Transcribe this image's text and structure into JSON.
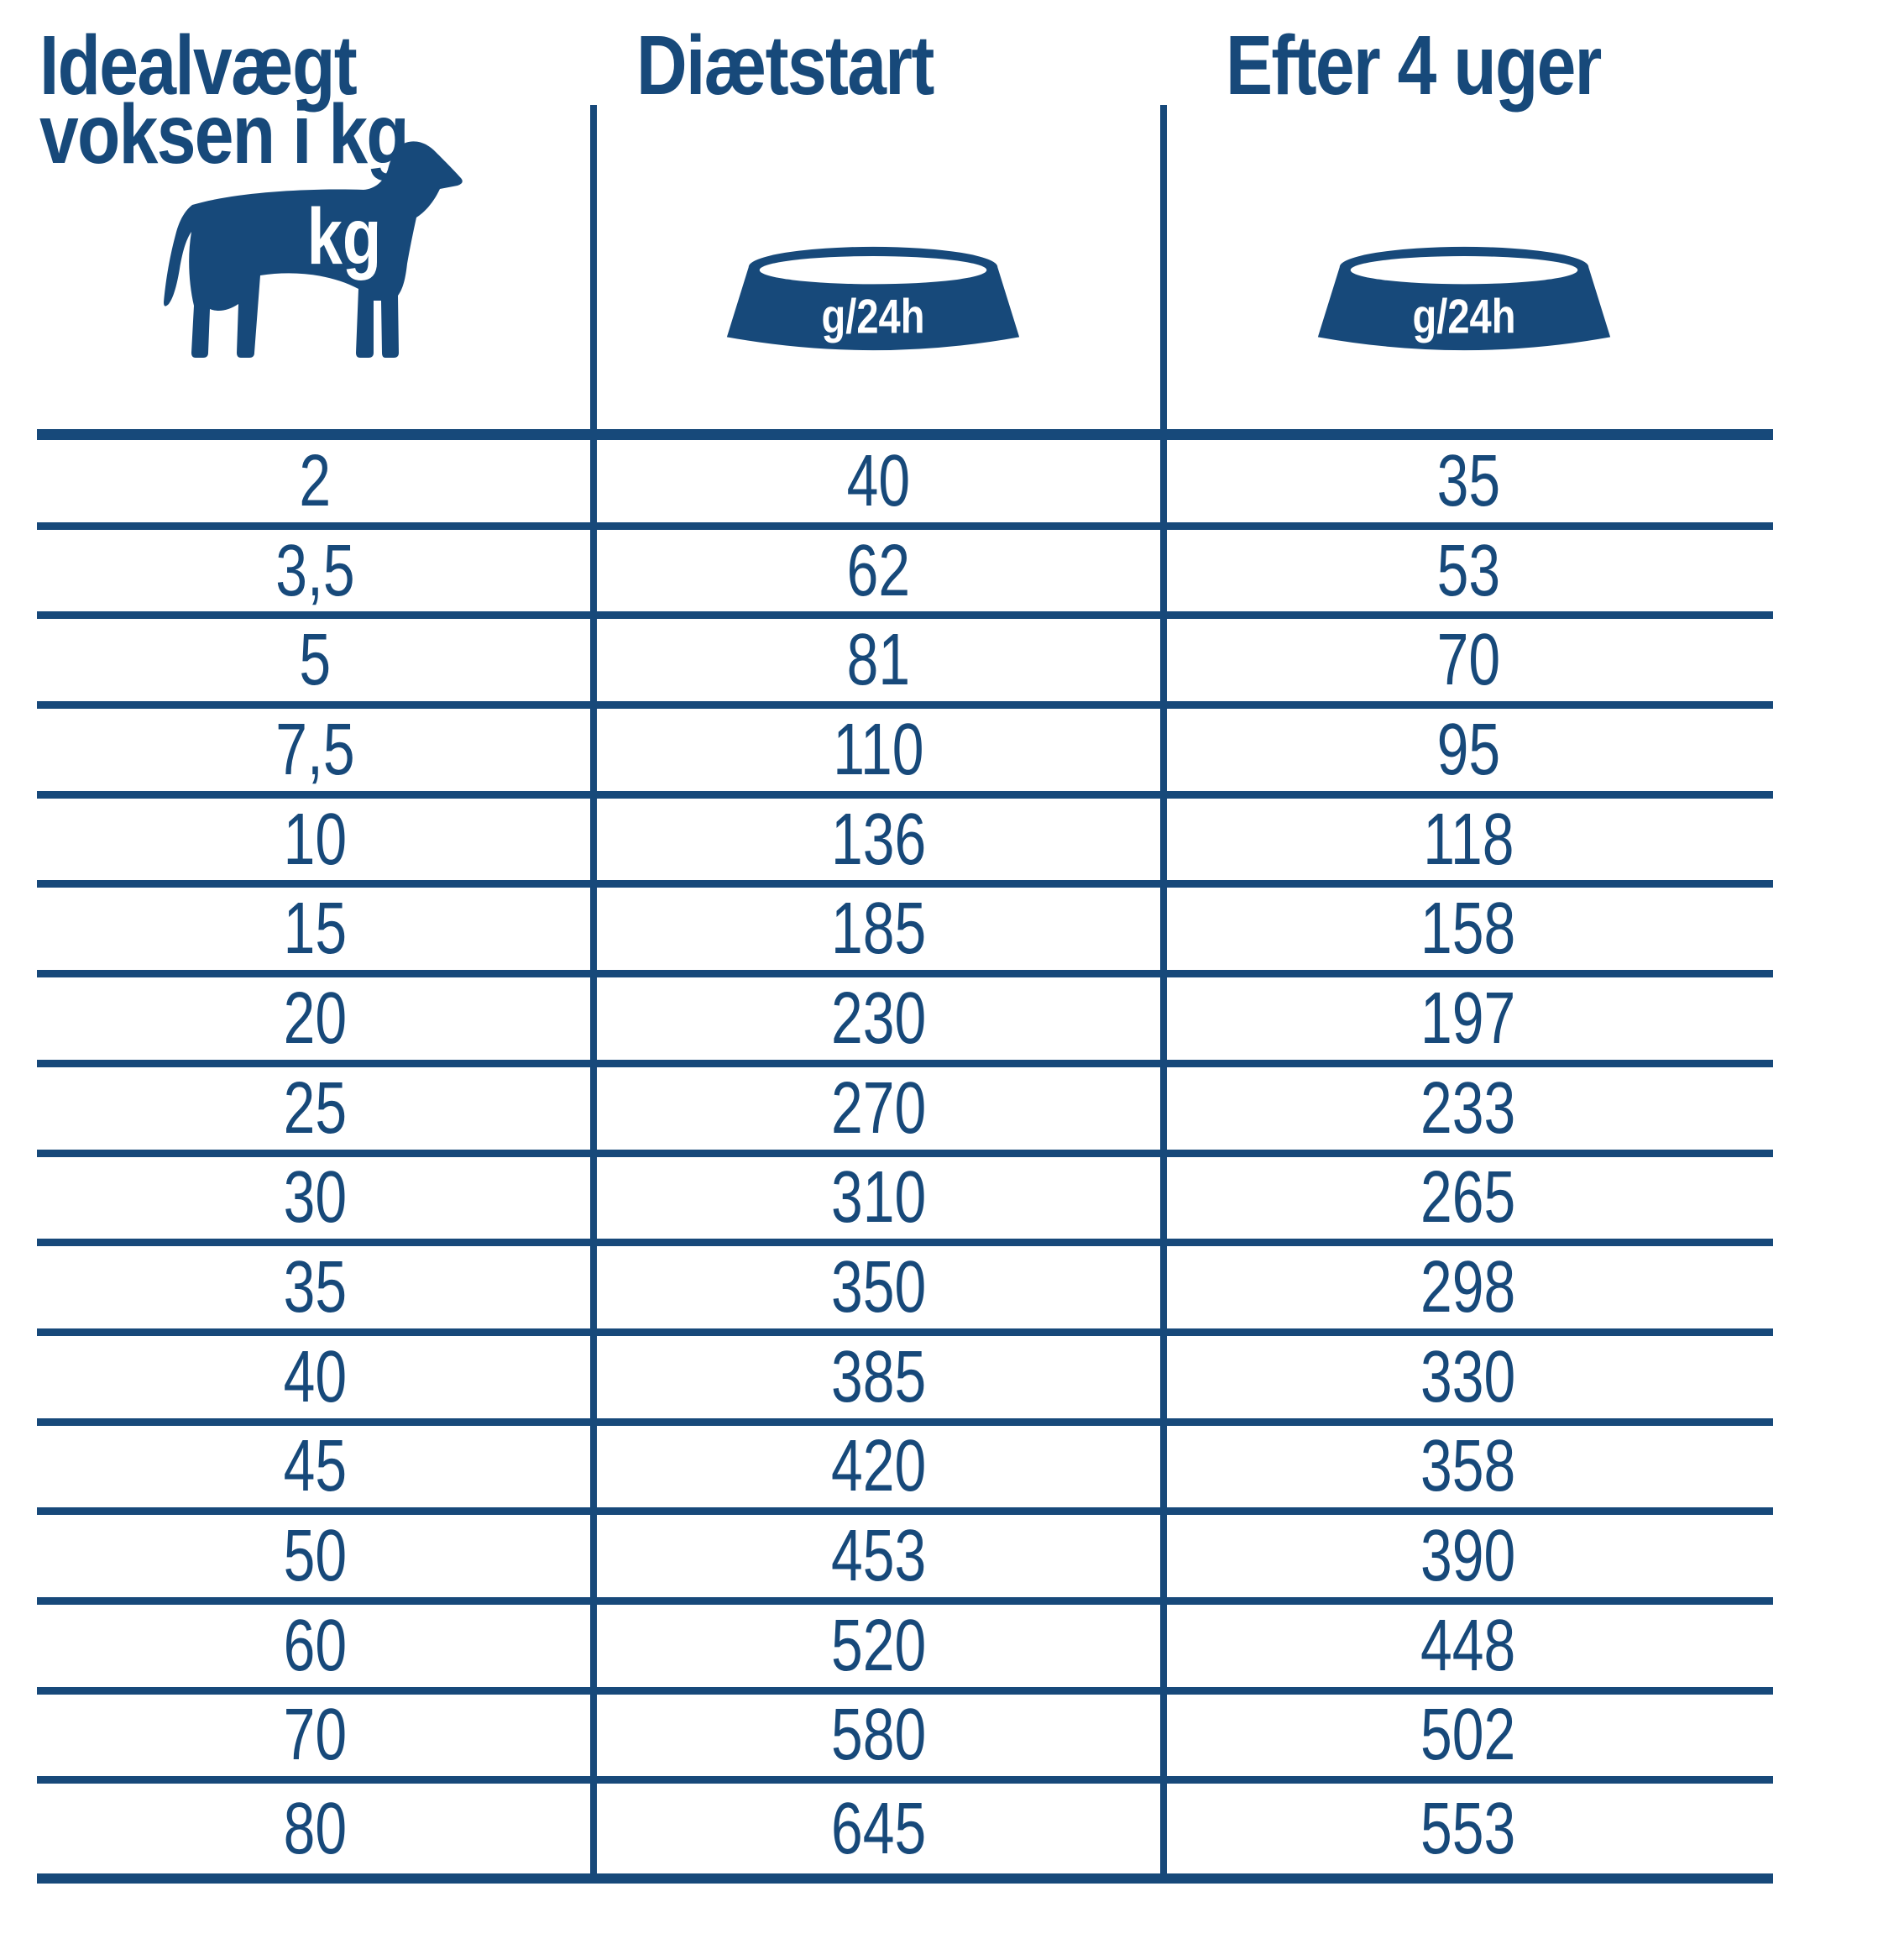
{
  "colors": {
    "navy": "#17497A",
    "background": "#FFFFFF"
  },
  "header": {
    "col1": {
      "title_line1": "Idealvægt",
      "title_line2": "voksen i kg",
      "icon": "dog-icon",
      "icon_label": "kg"
    },
    "col2": {
      "title": "Diætstart",
      "icon": "bowl-icon",
      "icon_label": "g/24h"
    },
    "col3": {
      "title": "Efter 4 uger",
      "icon": "bowl-icon",
      "icon_label": "g/24h"
    }
  },
  "table": {
    "rows": [
      {
        "weight": "2",
        "diet_start": "40",
        "after_4_weeks": "35"
      },
      {
        "weight": "3,5",
        "diet_start": "62",
        "after_4_weeks": "53"
      },
      {
        "weight": "5",
        "diet_start": "81",
        "after_4_weeks": "70"
      },
      {
        "weight": "7,5",
        "diet_start": "110",
        "after_4_weeks": "95"
      },
      {
        "weight": "10",
        "diet_start": "136",
        "after_4_weeks": "118"
      },
      {
        "weight": "15",
        "diet_start": "185",
        "after_4_weeks": "158"
      },
      {
        "weight": "20",
        "diet_start": "230",
        "after_4_weeks": "197"
      },
      {
        "weight": "25",
        "diet_start": "270",
        "after_4_weeks": "233"
      },
      {
        "weight": "30",
        "diet_start": "310",
        "after_4_weeks": "265"
      },
      {
        "weight": "35",
        "diet_start": "350",
        "after_4_weeks": "298"
      },
      {
        "weight": "40",
        "diet_start": "385",
        "after_4_weeks": "330"
      },
      {
        "weight": "45",
        "diet_start": "420",
        "after_4_weeks": "358"
      },
      {
        "weight": "50",
        "diet_start": "453",
        "after_4_weeks": "390"
      },
      {
        "weight": "60",
        "diet_start": "520",
        "after_4_weeks": "448"
      },
      {
        "weight": "70",
        "diet_start": "580",
        "after_4_weeks": "502"
      },
      {
        "weight": "80",
        "diet_start": "645",
        "after_4_weeks": "553"
      }
    ]
  },
  "chart_data": {
    "type": "table",
    "title": "Idealvægt voksen i kg / Diætstart / Efter 4 uger",
    "columns": [
      "Idealvægt voksen i kg",
      "Diætstart (g/24h)",
      "Efter 4 uger (g/24h)"
    ],
    "weights_kg": [
      2,
      3.5,
      5,
      7.5,
      10,
      15,
      20,
      25,
      30,
      35,
      40,
      45,
      50,
      60,
      70,
      80
    ],
    "series": [
      {
        "name": "Diætstart g/24h",
        "values": [
          40,
          62,
          81,
          110,
          136,
          185,
          230,
          270,
          310,
          350,
          385,
          420,
          453,
          520,
          580,
          645
        ]
      },
      {
        "name": "Efter 4 uger g/24h",
        "values": [
          35,
          53,
          70,
          95,
          118,
          158,
          197,
          233,
          265,
          298,
          330,
          358,
          390,
          448,
          502,
          553
        ]
      }
    ]
  }
}
